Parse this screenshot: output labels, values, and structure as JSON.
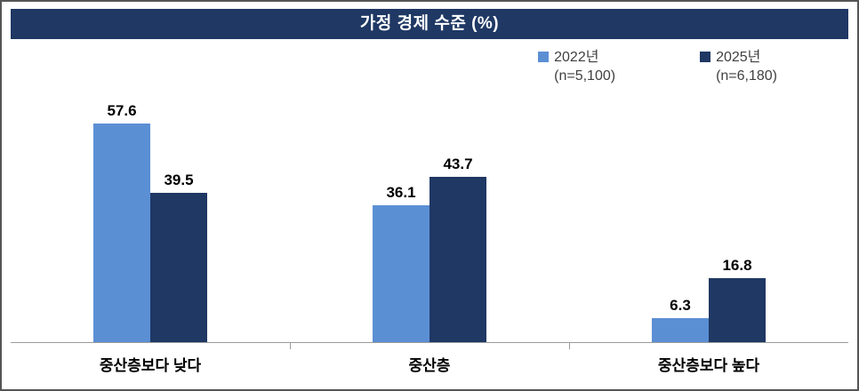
{
  "colors": {
    "title_bar_bg": "#1F3864",
    "title_text": "#FFFFFF",
    "axis_line": "#9B9B9B",
    "frame_border": "#555555"
  },
  "chart_data": {
    "type": "bar",
    "title": "가정 경제 수준 (%)",
    "categories": [
      "중산층보다 낮다",
      "중산층",
      "중산층보다 높다"
    ],
    "series": [
      {
        "name": "2022년",
        "n_label": "(n=5,100)",
        "color": "#5B8FD4",
        "values": [
          57.6,
          36.1,
          6.3
        ]
      },
      {
        "name": "2025년",
        "n_label": "(n=6,180)",
        "color": "#1F3864",
        "values": [
          39.5,
          43.7,
          16.8
        ]
      }
    ],
    "xlabel": "",
    "ylabel": "",
    "ylim": [
      0,
      80
    ],
    "grid": false,
    "legend_position": "top-right",
    "value_labels": true
  }
}
